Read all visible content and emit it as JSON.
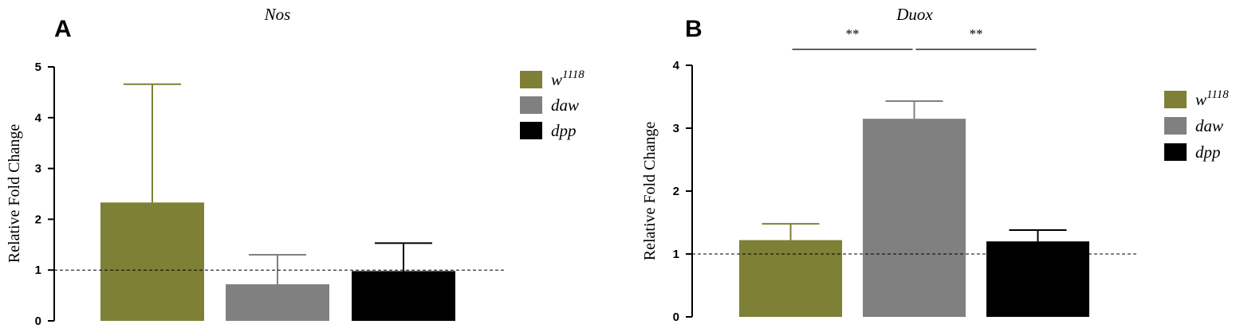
{
  "chart_data": [
    {
      "type": "bar",
      "panel": "A",
      "title": "Nos",
      "ylabel": "Relative Fold Change",
      "xlabel": "",
      "ylim": [
        0,
        5
      ],
      "yticks": [
        0,
        1,
        2,
        3,
        4,
        5
      ],
      "reference_line": 1,
      "legend_position": "top-right",
      "series": [
        {
          "name": "w",
          "name_sup": "1118",
          "value": 2.33,
          "error": 2.33,
          "color": "#7d8035"
        },
        {
          "name": "daw",
          "name_sup": "",
          "value": 0.72,
          "error": 0.58,
          "color": "#808080"
        },
        {
          "name": "dpp",
          "name_sup": "",
          "value": 0.98,
          "error": 0.55,
          "color": "#000000"
        }
      ],
      "significance": []
    },
    {
      "type": "bar",
      "panel": "B",
      "title": "Duox",
      "ylabel": "Relative Fold Change",
      "xlabel": "",
      "ylim": [
        0,
        4
      ],
      "yticks": [
        0,
        1,
        2,
        3,
        4
      ],
      "reference_line": 1,
      "legend_position": "right",
      "series": [
        {
          "name": "w",
          "name_sup": "1118",
          "value": 1.22,
          "error": 0.26,
          "color": "#7d8035"
        },
        {
          "name": "daw",
          "name_sup": "",
          "value": 3.15,
          "error": 0.28,
          "color": "#808080"
        },
        {
          "name": "dpp",
          "name_sup": "",
          "value": 1.2,
          "error": 0.18,
          "color": "#000000"
        }
      ],
      "significance": [
        {
          "from": 0,
          "to": 1,
          "label": "**"
        },
        {
          "from": 1,
          "to": 2,
          "label": "**"
        }
      ]
    }
  ]
}
